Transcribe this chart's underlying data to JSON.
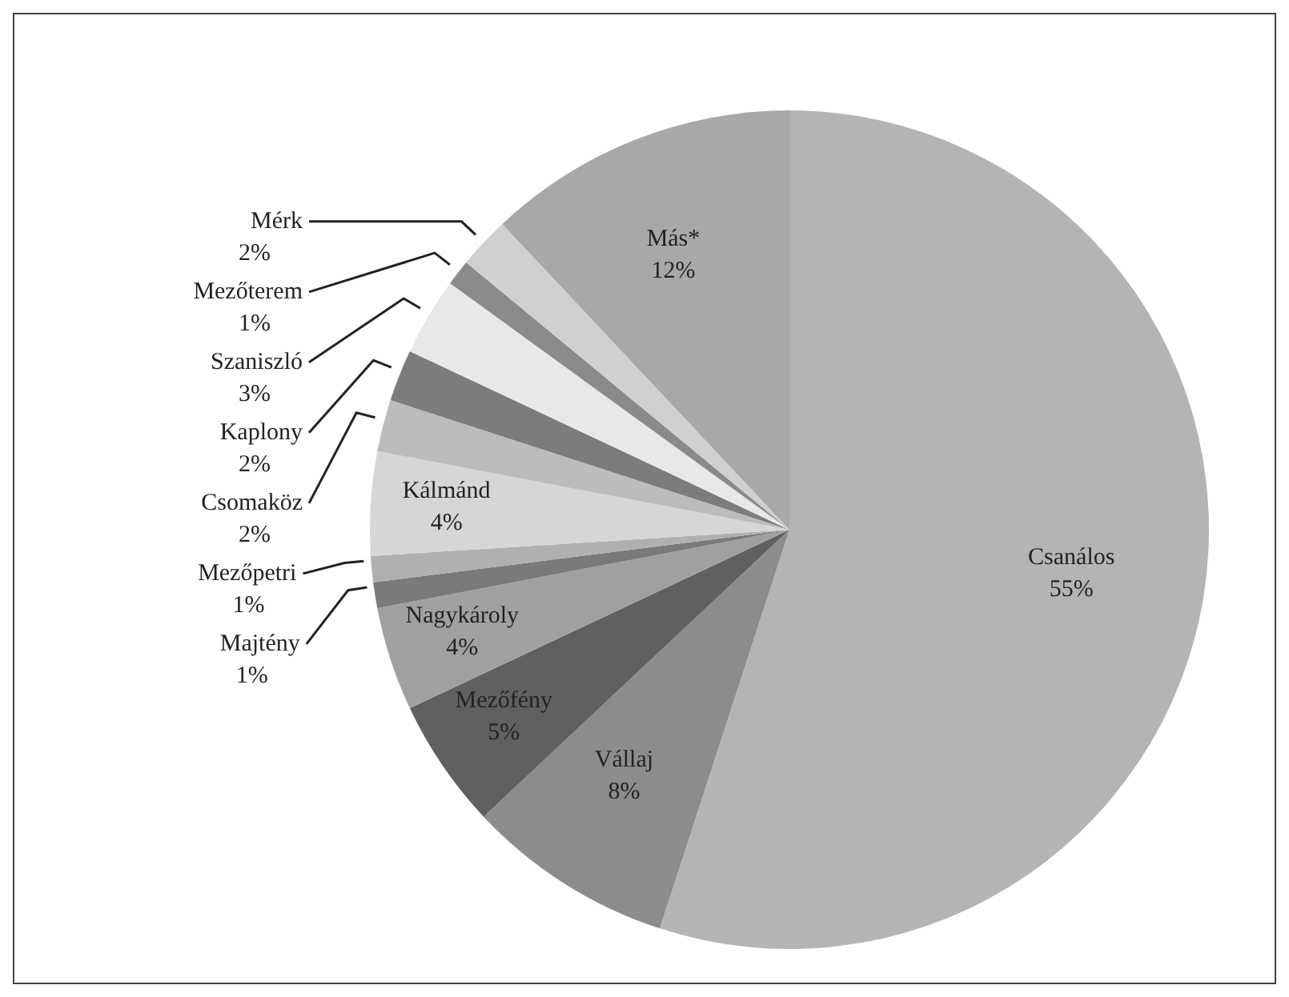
{
  "chart_data": {
    "type": "pie",
    "categories": [
      "Csanálos",
      "Vállaj",
      "Mezőfény",
      "Nagykároly",
      "Majtény",
      "Mezőpetri",
      "Kálmánd",
      "Csomaköz",
      "Kaplony",
      "Szaniszló",
      "Mezőterem",
      "Mérk",
      "Más*"
    ],
    "values": [
      55,
      8,
      5,
      4,
      1,
      1,
      4,
      2,
      2,
      3,
      1,
      2,
      12
    ],
    "value_labels": [
      "55%",
      "8%",
      "5%",
      "4%",
      "1%",
      "1%",
      "4%",
      "2%",
      "2%",
      "3%",
      "1%",
      "2%",
      "12%"
    ],
    "colors": [
      "#b4b4b4",
      "#8c8c8c",
      "#606060",
      "#a0a0a0",
      "#7a7a7a",
      "#b0b0b0",
      "#d6d6d6",
      "#bcbcbc",
      "#7c7c7c",
      "#e8e8e8",
      "#8a8a8a",
      "#d0d0d0",
      "#a8a8a8"
    ],
    "legend": false
  }
}
